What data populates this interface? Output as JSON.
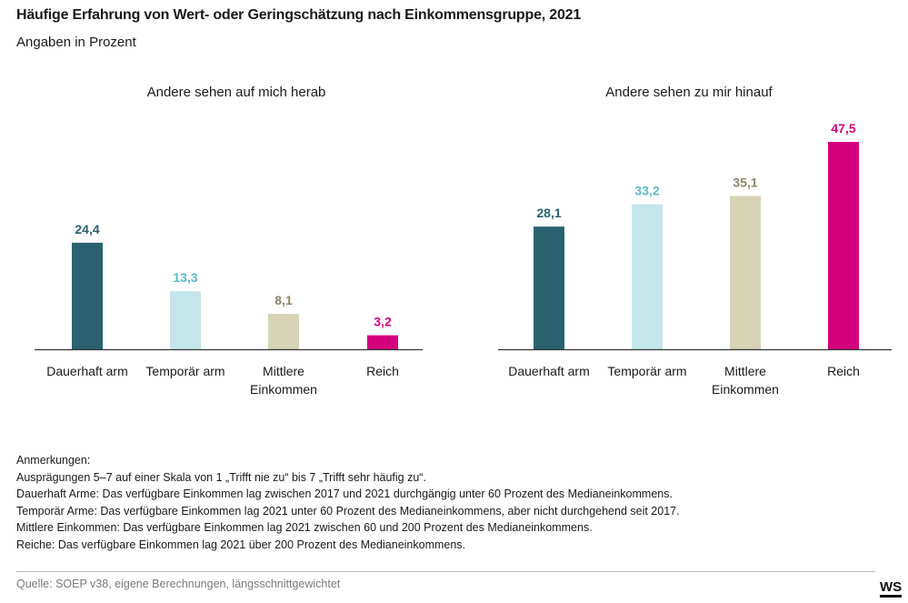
{
  "title": "Häufige Erfahrung von Wert- oder Geringschätzung nach Einkommensgruppe, 2021",
  "subtitle": "Angaben in Prozent",
  "chart_data": [
    {
      "type": "bar",
      "title": "Andere sehen auf mich herab",
      "categories": [
        "Dauerhaft arm",
        "Temporär arm",
        "Mittlere Einkommen",
        "Reich"
      ],
      "category_lines": [
        [
          "Dauerhaft arm"
        ],
        [
          "Temporär arm"
        ],
        [
          "Mittlere",
          "Einkommen"
        ],
        [
          "Reich"
        ]
      ],
      "values": [
        24.4,
        13.3,
        8.1,
        3.2
      ],
      "value_labels": [
        "24,4",
        "13,3",
        "8,1",
        "3,2"
      ],
      "colors": [
        "#2a636f",
        "#c4e6ea",
        "#d7d3b5",
        "#d4007d"
      ],
      "label_colors": [
        "#2a636f",
        "#5fb7c6",
        "#8c866a",
        "#d4007d"
      ],
      "ylim": [
        0,
        50
      ],
      "grid": false
    },
    {
      "type": "bar",
      "title": "Andere sehen zu mir hinauf",
      "categories": [
        "Dauerhaft arm",
        "Temporär arm",
        "Mittlere Einkommen",
        "Reich"
      ],
      "category_lines": [
        [
          "Dauerhaft arm"
        ],
        [
          "Temporär arm"
        ],
        [
          "Mittlere",
          "Einkommen"
        ],
        [
          "Reich"
        ]
      ],
      "values": [
        28.1,
        33.2,
        35.1,
        47.5
      ],
      "value_labels": [
        "28,1",
        "33,2",
        "35,1",
        "47,5"
      ],
      "colors": [
        "#2a636f",
        "#c4e6ea",
        "#d7d3b5",
        "#d4007d"
      ],
      "label_colors": [
        "#2a636f",
        "#5fb7c6",
        "#8c866a",
        "#d4007d"
      ],
      "ylim": [
        0,
        50
      ],
      "grid": false
    }
  ],
  "notes": {
    "heading": "Anmerkungen:",
    "lines": [
      "Ausprägungen 5–7 auf einer Skala von 1 „Trifft nie zu“ bis 7 „Trifft sehr häufig zu“.",
      "Dauerhaft Arme: Das verfügbare Einkommen lag zwischen 2017 und 2021 durchgängig unter 60 Prozent des Medianeinkommens.",
      "Temporär Arme: Das verfügbare Einkommen lag 2021 unter 60 Prozent des Medianeinkommens, aber nicht durchgehend seit 2017.",
      "Mittlere Einkommen: Das verfügbare Einkommen lag 2021 zwischen 60 und 200 Prozent des Medianeinkommens.",
      "Reiche: Das verfügbare Einkommen lag 2021 über 200 Prozent des Medianeinkommens."
    ]
  },
  "source": "Quelle: SOEP v38, eigene Berechnungen, längsschnittgewichtet",
  "logo": "WS"
}
